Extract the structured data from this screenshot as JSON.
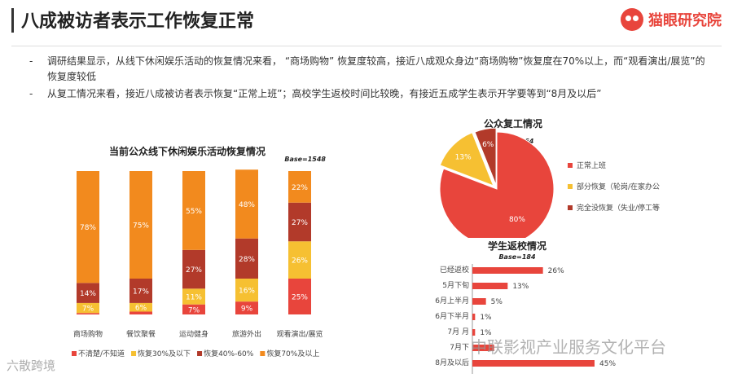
{
  "header": {
    "title": "八成被访者表示工作恢复正常",
    "logo_text": "猫眼研究院",
    "logo_icon": "cat-eye-logo-icon"
  },
  "bullets": [
    "调研结果显示，从线下休闲娱乐活动的恢复情况来看， “商场购物” 恢复度较高，接近八成观众身边“商场购物”恢复度在70%以上，而“观看演出/展览”的恢复度较低",
    "从复工情况来看，接近八成被访者表示恢复“正常上班”；高校学生返校时间比较晚，有接近五成学生表示开学要等到“8月及以后”"
  ],
  "colors": {
    "accent": "#e8453c",
    "dark_red": "#b23a2a",
    "orange": "#f28a1e",
    "yellow": "#f6c032",
    "red": "#e8453c"
  },
  "watermarks": {
    "right": "中联影视产业服务文化平台",
    "left": "六散跨境"
  },
  "chart_data": [
    {
      "type": "bar",
      "stacked": true,
      "title": "当前公众线下休闲娱乐活动恢复情况",
      "base": "Base=1548",
      "categories": [
        "商场购物",
        "餐饮聚餐",
        "运动健身",
        "旅游外出",
        "观看演出/展览"
      ],
      "series": [
        {
          "name": "不清楚/不知道",
          "color": "#e8453c",
          "values": [
            1,
            2,
            7,
            9,
            25
          ]
        },
        {
          "name": "恢复30%及以下",
          "color": "#f6c032",
          "values": [
            7,
            6,
            11,
            16,
            26
          ]
        },
        {
          "name": "恢复40%-60%",
          "color": "#b23a2a",
          "values": [
            14,
            17,
            27,
            28,
            27
          ]
        },
        {
          "name": "恢复70%及以上",
          "color": "#f28a1e",
          "values": [
            78,
            75,
            55,
            48,
            22
          ]
        }
      ],
      "data_labels": [
        [
          "",
          "7%",
          "14%",
          "78%"
        ],
        [
          "",
          "6%",
          "17%",
          "75%"
        ],
        [
          "7%",
          "11%",
          "27%",
          "55%"
        ],
        [
          "9%",
          "16%",
          "28%",
          "48%"
        ],
        [
          "25%",
          "26%",
          "27%",
          "22%"
        ]
      ],
      "legend_position": "bottom",
      "ylim": [
        0,
        100
      ]
    },
    {
      "type": "pie",
      "title": "公众复工情况",
      "base": "Base=1364",
      "labels": [
        "正常上班",
        "部分恢复（轮岗/在家办公等）",
        "完全没恢复（失业/停工等）"
      ],
      "values": [
        80,
        13,
        6
      ],
      "value_labels": [
        "80%",
        "13%",
        "6%"
      ],
      "colors": [
        "#e8453c",
        "#f6c032",
        "#b23a2a"
      ],
      "legend_position": "right"
    },
    {
      "type": "bar",
      "orientation": "horizontal",
      "title": "学生返校情况",
      "base": "Base=184",
      "categories": [
        "已经返校",
        "5月下旬",
        "6月上半月",
        "6月下半月",
        "7月上半月",
        "7月下半月",
        "8月及以后"
      ],
      "category_labels": [
        "已经返校",
        "5月下旬",
        "6月上半月",
        "6月下半月",
        "7月   月",
        "7月下",
        "8月及以后"
      ],
      "values": [
        26,
        13,
        5,
        1,
        1,
        8,
        45
      ],
      "value_labels": [
        "26%",
        "13%",
        "5%",
        "1%",
        "1%",
        "",
        "45%"
      ],
      "color": "#e8453c"
    }
  ]
}
